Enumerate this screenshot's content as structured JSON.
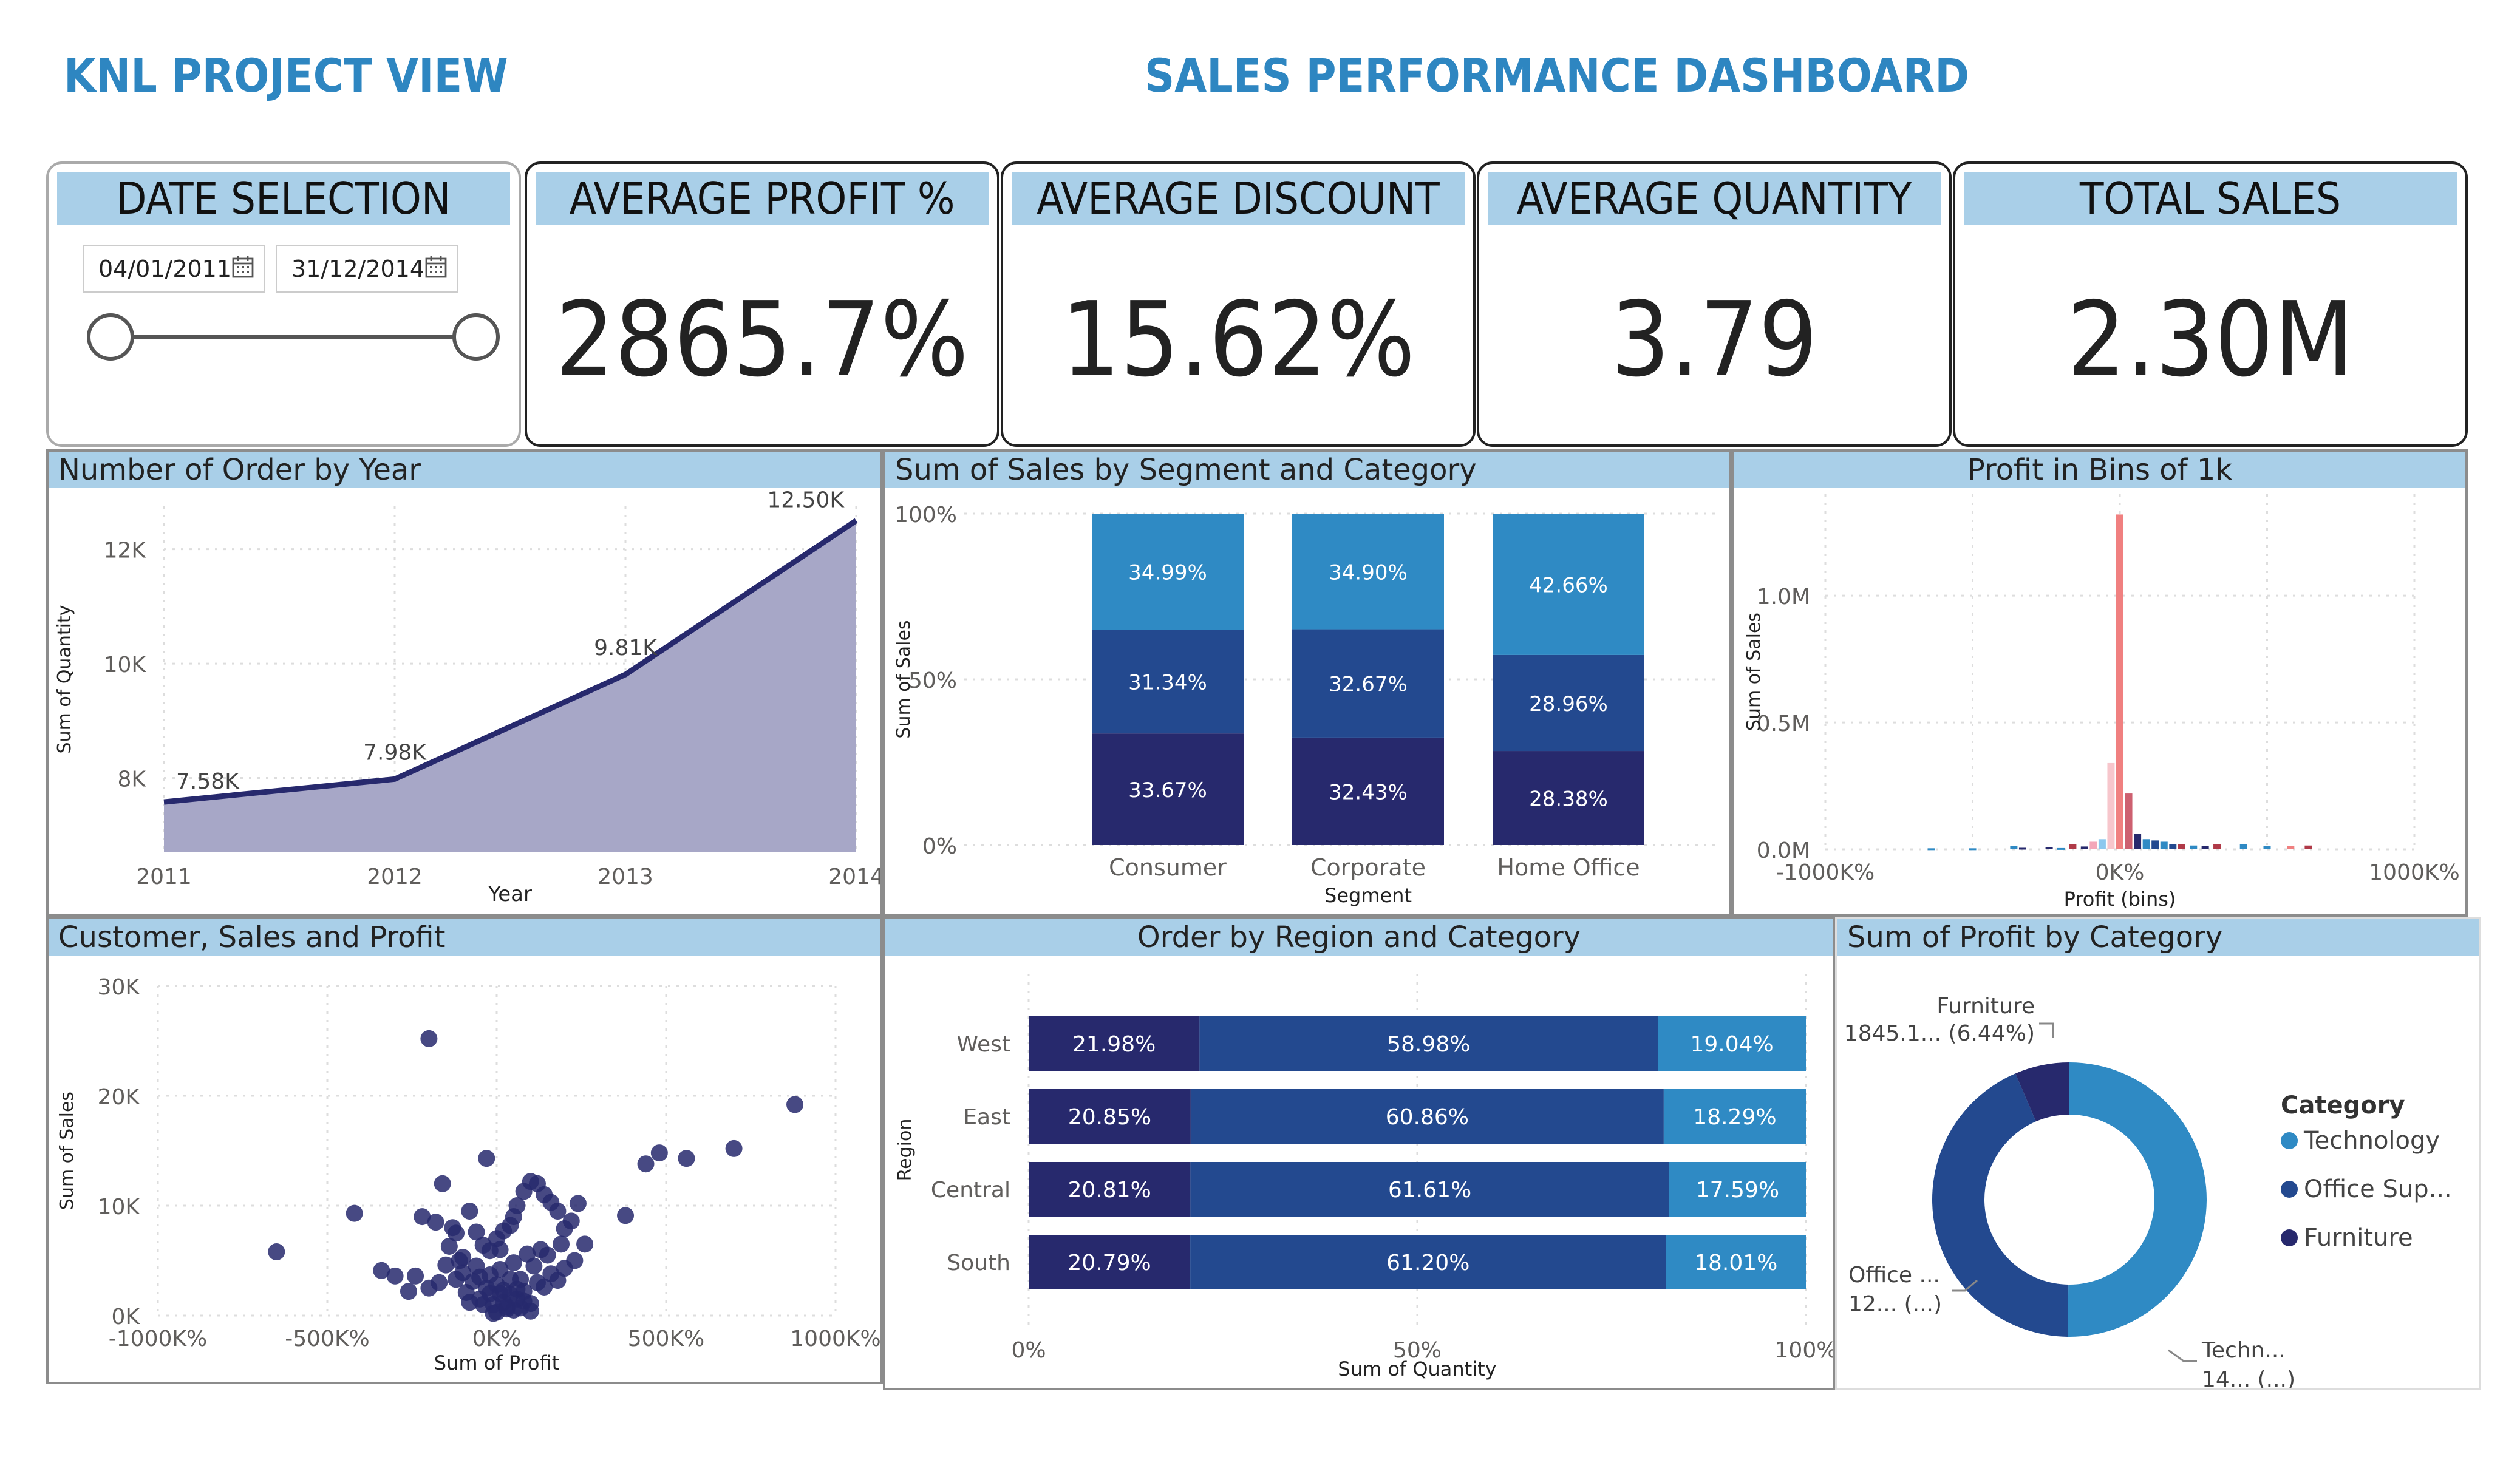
{
  "header": {
    "brand": "KNL PROJECT VIEW",
    "title": "SALES PERFORMANCE DASHBOARD"
  },
  "date_selection": {
    "label": "DATE SELECTION",
    "start": "04/01/2011",
    "end": "31/12/2014",
    "icon": "calendar-icon"
  },
  "kpis": [
    {
      "label": "AVERAGE PROFIT %",
      "value": "2865.7%"
    },
    {
      "label": "AVERAGE DISCOUNT",
      "value": "15.62%"
    },
    {
      "label": "AVERAGE QUANTITY",
      "value": "3.79"
    },
    {
      "label": "TOTAL SALES",
      "value": "2.30M"
    }
  ],
  "colors": {
    "accent": "#2E86C1",
    "header_bg": "#A9CFE8",
    "dark": "#27296D",
    "mid": "#23498F",
    "light": "#2F8AC4",
    "area": "#A7A7C7"
  },
  "chart_data": [
    {
      "id": "orders_by_year",
      "type": "area",
      "title": "Number of Order by Year",
      "xlabel": "Year",
      "ylabel": "Sum of Quantity",
      "x": [
        2011,
        2012,
        2013,
        2014
      ],
      "values": [
        7580,
        7980,
        9810,
        12500
      ],
      "data_labels": [
        "7.58K",
        "7.98K",
        "9.81K",
        "12.50K"
      ],
      "yticks": [
        {
          "v": 8000,
          "label": "8K"
        },
        {
          "v": 10000,
          "label": "10K"
        },
        {
          "v": 12000,
          "label": "12K"
        }
      ],
      "ylim": [
        6700,
        12750
      ],
      "grid": true
    },
    {
      "id": "sales_by_segment",
      "type": "bar",
      "stacked": "100%",
      "title": "Sum of Sales by Segment and Category",
      "xlabel": "Segment",
      "ylabel": "Sum of Sales",
      "categories": [
        "Consumer",
        "Corporate",
        "Home Office"
      ],
      "series": [
        {
          "values": [
            33.67,
            32.43,
            28.38
          ],
          "labels": [
            "33.67%",
            "32.43%",
            "28.38%"
          ],
          "color": "#27296D"
        },
        {
          "values": [
            31.34,
            32.67,
            28.96
          ],
          "labels": [
            "31.34%",
            "32.67%",
            "28.96%"
          ],
          "color": "#23498F"
        },
        {
          "values": [
            34.99,
            34.9,
            42.66
          ],
          "labels": [
            "34.99%",
            "34.90%",
            "42.66%"
          ],
          "color": "#2F8AC4"
        }
      ],
      "yticks": [
        "0%",
        "50%",
        "100%"
      ]
    },
    {
      "id": "profit_bins",
      "type": "bar",
      "title": "Profit in Bins of 1k",
      "xlabel": "Profit (bins)",
      "ylabel": "Sum of Sales",
      "xticks": [
        {
          "v": -1000,
          "label": "-1000K%"
        },
        {
          "v": 0,
          "label": "0K%"
        },
        {
          "v": 1000,
          "label": "1000K%"
        }
      ],
      "yticks": [
        {
          "v": 0,
          "label": "0.0M"
        },
        {
          "v": 0.5,
          "label": "0.5M"
        },
        {
          "v": 1.0,
          "label": "1.0M"
        }
      ],
      "xlim": [
        -1000,
        1000
      ],
      "ylim": [
        0,
        1.4
      ],
      "bins": [
        {
          "x": -640,
          "y": 0.004,
          "c": "#2F8AC4"
        },
        {
          "x": -500,
          "y": 0.004,
          "c": "#2F8AC4"
        },
        {
          "x": -360,
          "y": 0.012,
          "c": "#2F8AC4"
        },
        {
          "x": -330,
          "y": 0.006,
          "c": "#27296D"
        },
        {
          "x": -240,
          "y": 0.009,
          "c": "#27296D"
        },
        {
          "x": -200,
          "y": 0.005,
          "c": "#2F8AC4"
        },
        {
          "x": -160,
          "y": 0.02,
          "c": "#B03A48"
        },
        {
          "x": -120,
          "y": 0.011,
          "c": "#27296D"
        },
        {
          "x": -90,
          "y": 0.03,
          "c": "#F4A7B9"
        },
        {
          "x": -60,
          "y": 0.04,
          "c": "#8DC8EE"
        },
        {
          "x": -30,
          "y": 0.34,
          "c": "#F7C6CC"
        },
        {
          "x": 0,
          "y": 1.32,
          "c": "#F08080"
        },
        {
          "x": 30,
          "y": 0.22,
          "c": "#CD6070"
        },
        {
          "x": 60,
          "y": 0.06,
          "c": "#27296D"
        },
        {
          "x": 90,
          "y": 0.04,
          "c": "#2F8AC4"
        },
        {
          "x": 120,
          "y": 0.035,
          "c": "#23498F"
        },
        {
          "x": 150,
          "y": 0.03,
          "c": "#2F8AC4"
        },
        {
          "x": 180,
          "y": 0.02,
          "c": "#23498F"
        },
        {
          "x": 210,
          "y": 0.02,
          "c": "#B03A48"
        },
        {
          "x": 250,
          "y": 0.015,
          "c": "#2F8AC4"
        },
        {
          "x": 290,
          "y": 0.012,
          "c": "#27296D"
        },
        {
          "x": 330,
          "y": 0.02,
          "c": "#B03A48"
        },
        {
          "x": 420,
          "y": 0.02,
          "c": "#2F8AC4"
        },
        {
          "x": 500,
          "y": 0.012,
          "c": "#2F8AC4"
        },
        {
          "x": 580,
          "y": 0.012,
          "c": "#F08080"
        },
        {
          "x": 640,
          "y": 0.015,
          "c": "#B03A48"
        }
      ]
    },
    {
      "id": "customer_sales_profit",
      "type": "scatter",
      "title": "Customer, Sales and Profit",
      "xlabel": "Sum of Profit",
      "ylabel": "Sum of Sales",
      "xticks": [
        {
          "v": -1000,
          "label": "-1000K%"
        },
        {
          "v": -500,
          "label": "-500K%"
        },
        {
          "v": 0,
          "label": "0K%"
        },
        {
          "v": 500,
          "label": "500K%"
        },
        {
          "v": 1000,
          "label": "1000K%"
        }
      ],
      "yticks": [
        {
          "v": 0,
          "label": "0K"
        },
        {
          "v": 10000,
          "label": "10K"
        },
        {
          "v": 20000,
          "label": "20K"
        },
        {
          "v": 30000,
          "label": "30K"
        }
      ],
      "xlim": [
        -1000,
        1000
      ],
      "ylim": [
        0,
        30000
      ],
      "points": [
        [
          -200,
          25200
        ],
        [
          880,
          19200
        ],
        [
          -650,
          5800
        ],
        [
          -420,
          9300
        ],
        [
          -160,
          12000
        ],
        [
          -30,
          14300
        ],
        [
          480,
          14800
        ],
        [
          560,
          14300
        ],
        [
          700,
          15200
        ],
        [
          440,
          13800
        ],
        [
          380,
          9100
        ],
        [
          -340,
          4100
        ],
        [
          -300,
          3600
        ],
        [
          -240,
          3600
        ],
        [
          -220,
          9000
        ],
        [
          -180,
          8500
        ],
        [
          -120,
          7500
        ],
        [
          -80,
          9500
        ],
        [
          -60,
          7600
        ],
        [
          -40,
          6400
        ],
        [
          -20,
          5900
        ],
        [
          0,
          7000
        ],
        [
          20,
          7700
        ],
        [
          40,
          8200
        ],
        [
          60,
          10000
        ],
        [
          80,
          11300
        ],
        [
          100,
          12200
        ],
        [
          120,
          12000
        ],
        [
          140,
          11000
        ],
        [
          160,
          10300
        ],
        [
          180,
          9500
        ],
        [
          200,
          7900
        ],
        [
          220,
          8600
        ],
        [
          240,
          10200
        ],
        [
          -140,
          6300
        ],
        [
          -100,
          5300
        ],
        [
          -60,
          4500
        ],
        [
          -20,
          3700
        ],
        [
          0,
          2800
        ],
        [
          20,
          2300
        ],
        [
          40,
          1900
        ],
        [
          60,
          1500
        ],
        [
          80,
          1300
        ],
        [
          100,
          1100
        ],
        [
          -90,
          2100
        ],
        [
          -50,
          1500
        ],
        [
          -10,
          1000
        ],
        [
          30,
          800
        ],
        [
          50,
          500
        ],
        [
          -120,
          3300
        ],
        [
          -150,
          4600
        ],
        [
          -100,
          3900
        ],
        [
          -70,
          3100
        ],
        [
          -30,
          2500
        ],
        [
          10,
          2000
        ],
        [
          70,
          3300
        ],
        [
          110,
          4500
        ],
        [
          150,
          5500
        ],
        [
          190,
          6500
        ],
        [
          130,
          6000
        ],
        [
          90,
          5600
        ],
        [
          50,
          4800
        ],
        [
          10,
          4200
        ],
        [
          -50,
          3500
        ],
        [
          -40,
          1000
        ],
        [
          -80,
          1200
        ],
        [
          0,
          300
        ],
        [
          30,
          600
        ],
        [
          60,
          2400
        ],
        [
          120,
          3000
        ],
        [
          160,
          3800
        ],
        [
          200,
          4300
        ],
        [
          -200,
          2500
        ],
        [
          -260,
          2200
        ],
        [
          70,
          700
        ],
        [
          100,
          400
        ],
        [
          -10,
          200
        ],
        [
          40,
          3300
        ],
        [
          -20,
          2000
        ],
        [
          20,
          1200
        ],
        [
          80,
          2200
        ],
        [
          140,
          2600
        ],
        [
          180,
          3200
        ],
        [
          230,
          5000
        ],
        [
          260,
          6500
        ],
        [
          -170,
          3000
        ],
        [
          -110,
          5000
        ],
        [
          -130,
          8000
        ],
        [
          50,
          9000
        ],
        [
          10,
          6000
        ]
      ]
    },
    {
      "id": "order_by_region",
      "type": "bar",
      "orientation": "horizontal",
      "stacked": "100%",
      "title": "Order by Region and Category",
      "xlabel": "Sum of Quantity",
      "ylabel": "Region",
      "categories": [
        "West",
        "East",
        "Central",
        "South"
      ],
      "series": [
        {
          "values": [
            21.98,
            20.85,
            20.81,
            20.79
          ],
          "labels": [
            "21.98%",
            "20.85%",
            "20.81%",
            "20.79%"
          ],
          "color": "#27296D"
        },
        {
          "values": [
            58.98,
            60.86,
            61.61,
            61.2
          ],
          "labels": [
            "58.98%",
            "60.86%",
            "61.61%",
            "61.20%"
          ],
          "color": "#23498F"
        },
        {
          "values": [
            19.04,
            18.29,
            17.59,
            18.01
          ],
          "labels": [
            "19.04%",
            "18.29%",
            "17.59%",
            "18.01%"
          ],
          "color": "#2F8AC4"
        }
      ],
      "xticks": [
        "0%",
        "50%",
        "100%"
      ]
    },
    {
      "id": "profit_by_category",
      "type": "pie",
      "donut": true,
      "title": "Sum of Profit by Category",
      "legend_title": "Category",
      "slices": [
        {
          "name": "Technology",
          "pct": 50.2,
          "color": "#2F8AC4",
          "callout": [
            "Techn...",
            "14... (...)"
          ]
        },
        {
          "name": "Office Sup...",
          "pct": 43.36,
          "color": "#23498F",
          "callout": [
            "Office ...",
            "12... (...)"
          ]
        },
        {
          "name": "Furniture",
          "pct": 6.44,
          "color": "#27296D",
          "callout": [
            "Furniture",
            "1845.1... (6.44%)"
          ]
        }
      ]
    }
  ]
}
